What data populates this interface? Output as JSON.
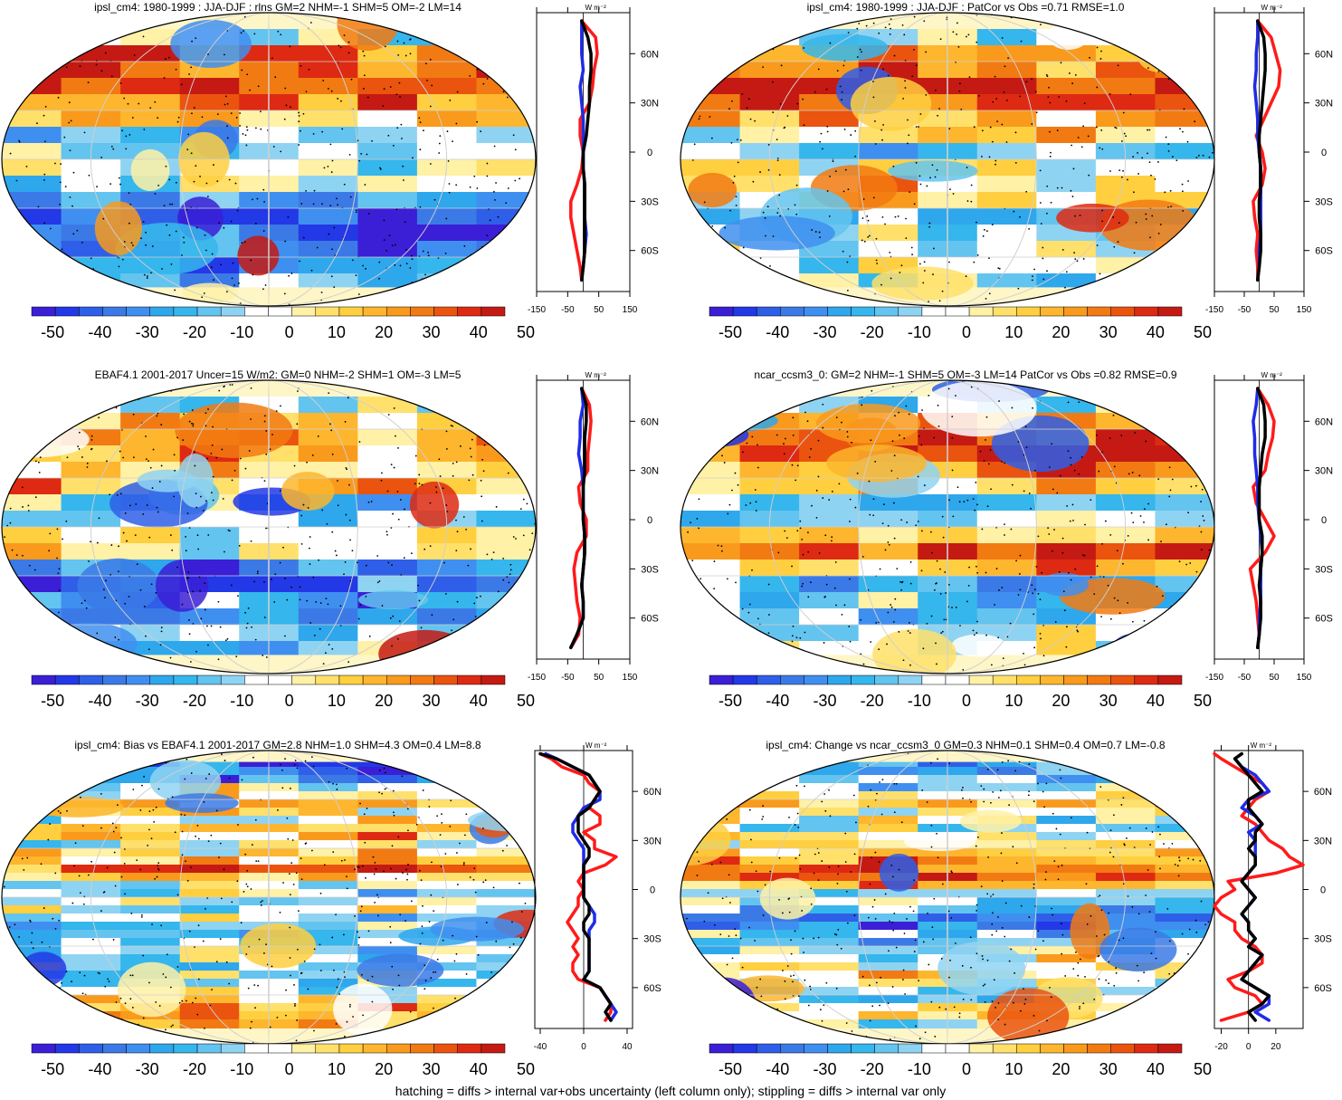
{
  "colors": {
    "scale": [
      "#3a1fd6",
      "#2338e6",
      "#2f5fe8",
      "#3b7ae6",
      "#3f8ff0",
      "#2ea7ec",
      "#35b6ec",
      "#63c4ef",
      "#8fd3f2",
      "#ffffff",
      "#ffffff",
      "#fff1a6",
      "#ffe06a",
      "#ffcf3f",
      "#fdb62d",
      "#f99a1c",
      "#f27a12",
      "#ea540f",
      "#de2a12",
      "#c41a13"
    ],
    "model": "#000000",
    "nh_line": "#1f2be6",
    "obs_line": "#ff1a1a"
  },
  "colorbar": {
    "labels": [
      "-50",
      "-40",
      "-30",
      "-20",
      "-10",
      "0",
      "10",
      "20",
      "30",
      "40",
      "50"
    ]
  },
  "footer": "hatching = diffs > internal var+obs uncertainty (left column only); stippling = diffs > internal var only",
  "chart_data": [
    {
      "type": "map-with-zonal-profile",
      "title": "ipsl_cm4: 1980-1999 : JJA-DJF : rlns GM=2 NHM=-1 SHM=5 OM=-2 LM=14",
      "profile_unit": "W m⁻²",
      "lat_ticks": [
        "60N",
        "30N",
        "0",
        "30S",
        "60S"
      ],
      "x_ticks": [
        "-150",
        "-50",
        "50",
        "150"
      ],
      "xlim": [
        -150,
        150
      ],
      "lat": [
        80,
        70,
        60,
        50,
        40,
        30,
        20,
        10,
        0,
        -10,
        -20,
        -30,
        -40,
        -50,
        -60,
        -70,
        -78
      ],
      "series": [
        {
          "name": "model",
          "values": [
            -5,
            15,
            25,
            25,
            20,
            20,
            15,
            10,
            0,
            0,
            5,
            5,
            5,
            5,
            5,
            0,
            -5
          ]
        },
        {
          "name": "blue",
          "values": [
            -5,
            -5,
            -5,
            0,
            -10,
            -5,
            0,
            0,
            0,
            0,
            5,
            5,
            5,
            10,
            5,
            0,
            -5
          ]
        },
        {
          "name": "red",
          "values": [
            -5,
            40,
            45,
            35,
            30,
            20,
            -10,
            -10,
            0,
            -5,
            -20,
            -40,
            -40,
            -30,
            -20,
            -10,
            -5
          ]
        }
      ]
    },
    {
      "type": "map-with-zonal-profile",
      "title": "ipsl_cm4: 1980-1999 : JJA-DJF : PatCor vs Obs =0.71 RMSE=1.0",
      "profile_unit": "W m⁻²",
      "lat_ticks": [
        "60N",
        "30N",
        "0",
        "30S",
        "60S"
      ],
      "x_ticks": [
        "-150",
        "-50",
        "50",
        "150"
      ],
      "xlim": [
        -150,
        150
      ],
      "lat": [
        80,
        70,
        60,
        50,
        40,
        30,
        20,
        10,
        0,
        -10,
        -20,
        -30,
        -40,
        -50,
        -60,
        -70,
        -78
      ],
      "series": [
        {
          "name": "model",
          "values": [
            -5,
            15,
            20,
            20,
            15,
            10,
            5,
            0,
            0,
            5,
            5,
            0,
            0,
            5,
            5,
            0,
            -5
          ]
        },
        {
          "name": "blue",
          "values": [
            -5,
            -5,
            -10,
            -10,
            -15,
            -10,
            -5,
            -5,
            0,
            5,
            5,
            5,
            5,
            5,
            0,
            0,
            -5
          ]
        },
        {
          "name": "red",
          "values": [
            -5,
            40,
            55,
            70,
            65,
            40,
            15,
            -10,
            10,
            20,
            10,
            -20,
            -15,
            -5,
            -10,
            -5,
            -5
          ]
        }
      ]
    },
    {
      "type": "map-with-zonal-profile",
      "title": "EBAF4.1 2001-2017 Uncer=15 W/m2: GM=0 NHM=-2 SHM=1 OM=-3 LM=5",
      "profile_unit": "W m⁻²",
      "lat_ticks": [
        "60N",
        "30N",
        "0",
        "30S",
        "60S"
      ],
      "x_ticks": [
        "-150",
        "-50",
        "50",
        "150"
      ],
      "xlim": [
        -150,
        150
      ],
      "lat": [
        80,
        70,
        60,
        50,
        40,
        30,
        20,
        10,
        0,
        -10,
        -20,
        -30,
        -40,
        -50,
        -60,
        -70,
        -78
      ],
      "series": [
        {
          "name": "model",
          "values": [
            -5,
            10,
            10,
            5,
            5,
            5,
            0,
            0,
            0,
            5,
            5,
            0,
            -5,
            0,
            0,
            -20,
            -40
          ]
        },
        {
          "name": "blue",
          "values": [
            -5,
            0,
            -10,
            -10,
            -15,
            -5,
            0,
            0,
            0,
            5,
            5,
            0,
            -5,
            0,
            0,
            -20,
            -40
          ]
        },
        {
          "name": "red",
          "values": [
            -5,
            20,
            25,
            20,
            15,
            15,
            -15,
            -10,
            10,
            10,
            -20,
            -30,
            -25,
            -20,
            -10,
            -15,
            -40
          ]
        }
      ]
    },
    {
      "type": "map-with-zonal-profile",
      "title": "ncar_ccsm3_0: GM=2 NHM=-1 SHM=5 OM=-3 LM=14 PatCor vs Obs =0.82 RMSE=0.9",
      "profile_unit": "W m⁻²",
      "lat_ticks": [
        "60N",
        "30N",
        "0",
        "30S",
        "60S"
      ],
      "x_ticks": [
        "-150",
        "-50",
        "50",
        "150"
      ],
      "xlim": [
        -150,
        150
      ],
      "lat": [
        80,
        70,
        60,
        50,
        40,
        30,
        20,
        10,
        0,
        -10,
        -20,
        -30,
        -40,
        -50,
        -60,
        -70,
        -78
      ],
      "series": [
        {
          "name": "model",
          "values": [
            -5,
            15,
            20,
            20,
            10,
            5,
            0,
            0,
            0,
            10,
            10,
            5,
            0,
            5,
            5,
            0,
            -5
          ]
        },
        {
          "name": "blue",
          "values": [
            -5,
            -10,
            -20,
            -15,
            -15,
            -10,
            -5,
            -5,
            0,
            5,
            10,
            5,
            5,
            5,
            0,
            0,
            -5
          ]
        },
        {
          "name": "red",
          "values": [
            -5,
            30,
            50,
            45,
            30,
            20,
            -20,
            -10,
            20,
            50,
            20,
            -30,
            -20,
            -10,
            -5,
            0,
            -5
          ]
        }
      ]
    },
    {
      "type": "map-with-zonal-profile",
      "title": "ipsl_cm4: Bias vs EBAF4.1 2001-2017 GM=2.8 NHM=1.0 SHM=4.3 OM=0.4 LM=8.8",
      "profile_unit": "W m⁻²",
      "lat_ticks": [
        "60N",
        "30N",
        "0",
        "30S",
        "60S"
      ],
      "x_ticks": [
        "-40",
        "0",
        "40"
      ],
      "xlim": [
        -45,
        45
      ],
      "lat": [
        83,
        80,
        75,
        70,
        65,
        60,
        55,
        50,
        45,
        40,
        35,
        30,
        25,
        20,
        15,
        10,
        5,
        0,
        -5,
        -10,
        -15,
        -20,
        -25,
        -30,
        -35,
        -40,
        -45,
        -50,
        -55,
        -60,
        -65,
        -70,
        -75,
        -80
      ],
      "series": [
        {
          "name": "model",
          "values": [
            -40,
            -25,
            -10,
            5,
            10,
            15,
            10,
            5,
            -5,
            -5,
            -5,
            0,
            5,
            5,
            0,
            0,
            0,
            0,
            0,
            5,
            5,
            0,
            0,
            5,
            5,
            5,
            5,
            5,
            0,
            15,
            20,
            25,
            20,
            25
          ]
        },
        {
          "name": "blue",
          "values": [
            -35,
            -25,
            -10,
            5,
            10,
            15,
            15,
            0,
            -5,
            -10,
            -10,
            -5,
            0,
            0,
            0,
            0,
            0,
            0,
            0,
            5,
            10,
            10,
            5,
            5,
            5,
            5,
            5,
            5,
            0,
            15,
            20,
            25,
            30,
            25
          ]
        },
        {
          "name": "red",
          "values": [
            -40,
            -30,
            -20,
            0,
            5,
            15,
            10,
            5,
            15,
            15,
            0,
            10,
            10,
            30,
            20,
            0,
            -5,
            0,
            -5,
            -5,
            -10,
            -15,
            -10,
            -5,
            -10,
            -5,
            -10,
            -10,
            -5,
            15,
            20,
            25,
            25,
            20
          ]
        }
      ]
    },
    {
      "type": "map-with-zonal-profile",
      "title": "ipsl_cm4: Change vs ncar_ccsm3_0 GM=0.3 NHM=0.1 SHM=0.4 OM=0.7 LM=-0.8",
      "profile_unit": "W m⁻²",
      "lat_ticks": [
        "60N",
        "30N",
        "0",
        "30S",
        "60S"
      ],
      "x_ticks": [
        "-20",
        "0",
        "20"
      ],
      "xlim": [
        -25,
        40
      ],
      "lat": [
        83,
        80,
        75,
        70,
        65,
        60,
        55,
        50,
        45,
        40,
        35,
        30,
        25,
        20,
        15,
        10,
        5,
        0,
        -5,
        -10,
        -15,
        -20,
        -25,
        -30,
        -35,
        -40,
        -45,
        -50,
        -55,
        -60,
        -65,
        -70,
        -75,
        -80
      ],
      "series": [
        {
          "name": "model",
          "values": [
            -5,
            -10,
            -5,
            0,
            5,
            10,
            0,
            0,
            5,
            10,
            5,
            5,
            0,
            5,
            5,
            0,
            -5,
            0,
            5,
            0,
            -5,
            0,
            0,
            5,
            0,
            10,
            5,
            0,
            -5,
            5,
            15,
            10,
            0,
            5
          ]
        },
        {
          "name": "blue",
          "values": [
            -5,
            -10,
            -5,
            5,
            10,
            15,
            0,
            -5,
            5,
            10,
            0,
            5,
            5,
            5,
            5,
            0,
            -5,
            0,
            5,
            0,
            -5,
            0,
            0,
            5,
            0,
            10,
            5,
            0,
            -5,
            5,
            15,
            15,
            5,
            15
          ]
        },
        {
          "name": "red",
          "values": [
            -25,
            -20,
            -10,
            0,
            10,
            15,
            5,
            0,
            -5,
            5,
            10,
            15,
            25,
            30,
            40,
            20,
            -15,
            -10,
            -20,
            -25,
            -20,
            -10,
            -10,
            -5,
            5,
            10,
            10,
            0,
            -15,
            -10,
            5,
            10,
            0,
            -20
          ]
        }
      ]
    }
  ]
}
